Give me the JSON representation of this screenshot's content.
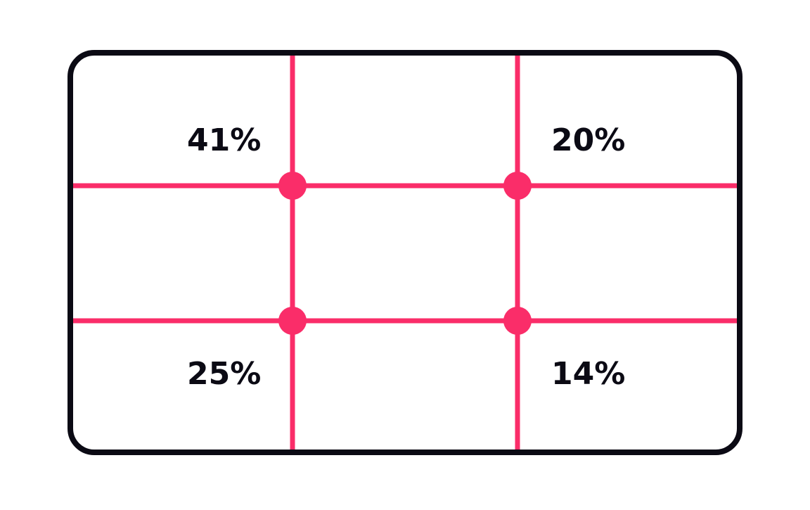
{
  "colors": {
    "frame": "#0b0a14",
    "grid": "#fa2d69",
    "text": "#0b0a14",
    "background": "#ffffff"
  },
  "quadrants": {
    "top_left": "41%",
    "top_right": "20%",
    "bottom_left": "25%",
    "bottom_right": "14%"
  }
}
